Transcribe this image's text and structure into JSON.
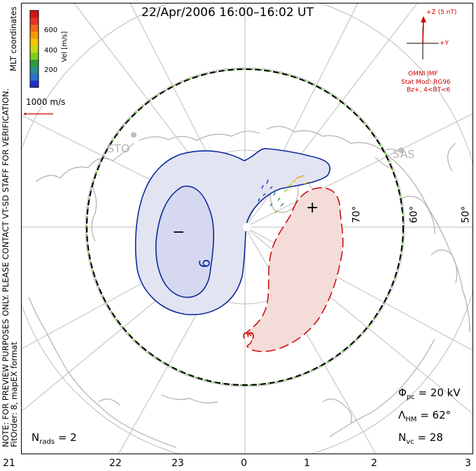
{
  "title": "22/Apr/2006 16:00–16:02 UT",
  "side_note_1": "NOTE: FOR PREVIEW PURPOSES ONLY. PLEASE CONTACT VT-SD STAFF FOR VERIFICATION.",
  "side_note_2": "FitOrder: 8, mapEX format",
  "coordinates_label": "MLT coordinates",
  "velocity_scale": {
    "label": "Vel [m/s]",
    "ticks": [
      "600",
      "400",
      "200"
    ],
    "colors": [
      "#2030d0",
      "#2c6fd0",
      "#2e8c8e",
      "#2e9c3a",
      "#7fcf22",
      "#c9d71a",
      "#f5c500",
      "#f79a00",
      "#f06818",
      "#e8331c",
      "#d41515"
    ]
  },
  "vector_scale_label": "1000 m/s",
  "imf": {
    "z_label": "+Z (5 nT)",
    "y_label": "+Y",
    "source": "OMNI IMF",
    "model_line1": "Stat Mod: RG96",
    "model_line2": "Bz+, 4<BT<6",
    "color": "#cc0000"
  },
  "potential_labels": {
    "negative_sign": "−",
    "positive_sign": "+",
    "negative_contour_value": "6",
    "positive_contour_value": "3"
  },
  "latitude_labels": [
    "70°",
    "60°",
    "50°"
  ],
  "radar_sites": [
    "STO",
    "SAS"
  ],
  "stats": {
    "phi_symbol": "Φ",
    "phi_sub": "pc",
    "phi_value": "= 20 kV",
    "lambda_symbol": "Λ",
    "lambda_sub": "HM",
    "lambda_value": "= 62°",
    "nvc_symbol": "N",
    "nvc_sub": "vc",
    "nvc_value": "= 28",
    "nrads_symbol": "N",
    "nrads_sub": "rads",
    "nrads_value": "= 2"
  },
  "mlt_hours": [
    "21",
    "22",
    "23",
    "0",
    "1",
    "2",
    "3"
  ],
  "colors": {
    "negative_cell_fill": "#e2e4f2",
    "negative_cell_inner": "#d6d8f0",
    "negative_contour": "#0a2a9a",
    "positive_cell_fill": "#f4dcd8",
    "positive_contour": "#cc1111",
    "grid": "#bdbdbd",
    "coast": "#b0b0b0",
    "boundary_dash": "#5fbf3a"
  }
}
